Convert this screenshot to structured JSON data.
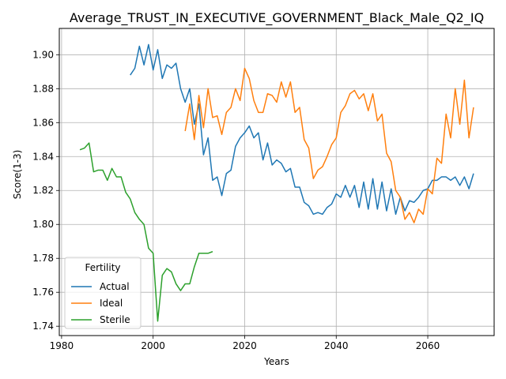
{
  "chart_data": {
    "type": "line",
    "title": "Average_TRUST_IN_EXECUTIVE_GOVERNMENT_Black_Male_Q2_IQ",
    "xlabel": "Years",
    "ylabel": "Score(1-3)",
    "xlim": [
      1979.5,
      2074.5
    ],
    "ylim": [
      1.7345,
      1.9155
    ],
    "xticks": [
      1980,
      2000,
      2020,
      2040,
      2060
    ],
    "yticks": [
      1.74,
      1.76,
      1.78,
      1.8,
      1.82,
      1.84,
      1.86,
      1.88,
      1.9
    ],
    "ytick_labels": [
      "1.74",
      "1.76",
      "1.78",
      "1.80",
      "1.82",
      "1.84",
      "1.86",
      "1.88",
      "1.90"
    ],
    "grid": true,
    "legend": {
      "title": "Fertility",
      "position": "lower-left"
    },
    "series": [
      {
        "name": "Actual",
        "color": "#1f77b4",
        "x": [
          1995,
          1996,
          1997,
          1998,
          1999,
          2000,
          2001,
          2002,
          2003,
          2004,
          2005,
          2006,
          2007,
          2008,
          2009,
          2010,
          2011,
          2012,
          2013,
          2014,
          2015,
          2016,
          2017,
          2018,
          2019,
          2020,
          2021,
          2022,
          2023,
          2024,
          2025,
          2026,
          2027,
          2028,
          2029,
          2030,
          2031,
          2032,
          2033,
          2034,
          2035,
          2036,
          2037,
          2038,
          2039,
          2040,
          2041,
          2042,
          2043,
          2044,
          2045,
          2046,
          2047,
          2048,
          2049,
          2050,
          2051,
          2052,
          2053,
          2054,
          2055,
          2056,
          2057,
          2058,
          2059,
          2060,
          2061,
          2062,
          2063,
          2064,
          2065,
          2066,
          2067,
          2068,
          2069,
          2070
        ],
        "values": [
          1.888,
          1.892,
          1.905,
          1.894,
          1.906,
          1.891,
          1.903,
          1.886,
          1.894,
          1.892,
          1.895,
          1.88,
          1.872,
          1.88,
          1.859,
          1.871,
          1.841,
          1.851,
          1.826,
          1.828,
          1.817,
          1.83,
          1.832,
          1.846,
          1.851,
          1.854,
          1.858,
          1.851,
          1.854,
          1.838,
          1.848,
          1.835,
          1.838,
          1.836,
          1.831,
          1.833,
          1.822,
          1.822,
          1.813,
          1.811,
          1.806,
          1.807,
          1.806,
          1.81,
          1.812,
          1.818,
          1.816,
          1.823,
          1.816,
          1.823,
          1.81,
          1.825,
          1.809,
          1.827,
          1.809,
          1.825,
          1.808,
          1.821,
          1.806,
          1.816,
          1.808,
          1.814,
          1.813,
          1.816,
          1.82,
          1.821,
          1.826,
          1.826,
          1.828,
          1.828,
          1.826,
          1.828,
          1.823,
          1.828,
          1.821,
          1.83
        ]
      },
      {
        "name": "Ideal",
        "color": "#ff7f0e",
        "x": [
          2007,
          2008,
          2009,
          2010,
          2011,
          2012,
          2013,
          2014,
          2015,
          2016,
          2017,
          2018,
          2019,
          2020,
          2021,
          2022,
          2023,
          2024,
          2025,
          2026,
          2027,
          2028,
          2029,
          2030,
          2031,
          2032,
          2033,
          2034,
          2035,
          2036,
          2037,
          2038,
          2039,
          2040,
          2041,
          2042,
          2043,
          2044,
          2045,
          2046,
          2047,
          2048,
          2049,
          2050,
          2051,
          2052,
          2053,
          2054,
          2055,
          2056,
          2057,
          2058,
          2059,
          2060,
          2061,
          2062,
          2063,
          2064,
          2065,
          2066,
          2067,
          2068,
          2069,
          2070
        ],
        "values": [
          1.855,
          1.871,
          1.85,
          1.876,
          1.857,
          1.88,
          1.863,
          1.864,
          1.853,
          1.866,
          1.869,
          1.88,
          1.873,
          1.892,
          1.886,
          1.873,
          1.866,
          1.866,
          1.877,
          1.876,
          1.872,
          1.884,
          1.875,
          1.884,
          1.866,
          1.869,
          1.85,
          1.845,
          1.827,
          1.832,
          1.834,
          1.84,
          1.847,
          1.851,
          1.866,
          1.87,
          1.877,
          1.879,
          1.874,
          1.877,
          1.867,
          1.877,
          1.861,
          1.865,
          1.842,
          1.837,
          1.82,
          1.816,
          1.803,
          1.807,
          1.801,
          1.809,
          1.806,
          1.821,
          1.818,
          1.839,
          1.836,
          1.865,
          1.851,
          1.88,
          1.859,
          1.885,
          1.851,
          1.869
        ]
      },
      {
        "name": "Sterile",
        "color": "#2ca02c",
        "x": [
          1984,
          1985,
          1986,
          1987,
          1988,
          1989,
          1990,
          1991,
          1992,
          1993,
          1994,
          1995,
          1996,
          1997,
          1998,
          1999,
          2000,
          2001,
          2002,
          2003,
          2004,
          2005,
          2006,
          2007,
          2008,
          2009,
          2010,
          2011,
          2012,
          2013
        ],
        "values": [
          1.844,
          1.845,
          1.848,
          1.831,
          1.832,
          1.832,
          1.826,
          1.833,
          1.828,
          1.828,
          1.819,
          1.815,
          1.807,
          1.803,
          1.8,
          1.786,
          1.783,
          1.743,
          1.77,
          1.774,
          1.772,
          1.765,
          1.761,
          1.765,
          1.765,
          1.775,
          1.783,
          1.783,
          1.783,
          1.784
        ]
      }
    ]
  }
}
